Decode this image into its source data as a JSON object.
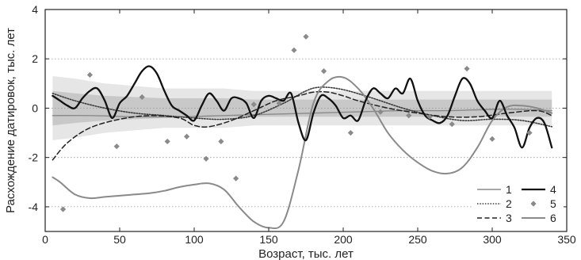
{
  "chart_data": {
    "type": "line",
    "xlabel": "Возраст, тыс. лет",
    "ylabel": "Расхождение датировок, тыс. лет",
    "xlim": [
      0,
      350
    ],
    "ylim": [
      -5,
      4
    ],
    "xticks": [
      0,
      50,
      100,
      150,
      200,
      250,
      300,
      350
    ],
    "yticks": [
      -4,
      -2,
      0,
      2,
      4
    ],
    "grid": "horizontal-dotted",
    "legend_position": "bottom-right",
    "bands": [
      {
        "name": "outer",
        "color": "#e6e6e6",
        "x": [
          5,
          20,
          40,
          60,
          80,
          100,
          120,
          140,
          160,
          180,
          200,
          220,
          240,
          260,
          280,
          300,
          320,
          340
        ],
        "upper": [
          1.3,
          1.2,
          1.0,
          0.9,
          0.8,
          0.8,
          0.8,
          0.7,
          0.7,
          0.7,
          0.7,
          0.7,
          0.7,
          0.7,
          0.7,
          0.7,
          0.7,
          0.7
        ],
        "lower": [
          -1.3,
          -1.2,
          -1.0,
          -0.9,
          -0.8,
          -0.8,
          -0.8,
          -0.7,
          -0.7,
          -0.7,
          -0.7,
          -0.7,
          -0.7,
          -0.7,
          -0.7,
          -0.7,
          -0.7,
          -0.7
        ]
      },
      {
        "name": "inner",
        "color": "#c8c8c8",
        "x": [
          5,
          20,
          40,
          60,
          80,
          100,
          120,
          140,
          160,
          180,
          200,
          220,
          240,
          260,
          280,
          300,
          320,
          340
        ],
        "upper": [
          0.7,
          0.6,
          0.5,
          0.45,
          0.4,
          0.4,
          0.4,
          0.35,
          0.35,
          0.35,
          0.35,
          0.35,
          0.35,
          0.35,
          0.35,
          0.35,
          0.35,
          0.35
        ],
        "lower": [
          -0.7,
          -0.6,
          -0.5,
          -0.45,
          -0.4,
          -0.4,
          -0.4,
          -0.35,
          -0.35,
          -0.35,
          -0.35,
          -0.35,
          -0.35,
          -0.35,
          -0.35,
          -0.35,
          -0.35,
          -0.35
        ]
      }
    ],
    "series": [
      {
        "name": "1",
        "style": "thin-solid",
        "color": "#8a8a8a",
        "x": [
          5,
          30,
          60,
          90,
          120,
          150,
          180,
          210,
          240,
          270,
          300,
          320,
          340
        ],
        "y": [
          -0.3,
          -0.3,
          -0.35,
          -0.35,
          -0.3,
          -0.25,
          -0.2,
          -0.15,
          -0.1,
          -0.1,
          -0.05,
          -0.05,
          -0.1
        ]
      },
      {
        "name": "2",
        "style": "dotted",
        "color": "#3a3a3a",
        "x": [
          5,
          20,
          40,
          60,
          80,
          100,
          120,
          140,
          160,
          175,
          185,
          200,
          220,
          240,
          260,
          280,
          300,
          320,
          340
        ],
        "y": [
          0.6,
          0.3,
          0.0,
          -0.2,
          -0.3,
          -0.4,
          -0.45,
          -0.3,
          0.2,
          0.7,
          0.85,
          0.75,
          0.4,
          0.0,
          -0.3,
          -0.5,
          -0.45,
          -0.5,
          -0.75
        ]
      },
      {
        "name": "3",
        "style": "dashed",
        "color": "#222222",
        "x": [
          5,
          15,
          30,
          50,
          70,
          90,
          100,
          110,
          125,
          140,
          155,
          170,
          180,
          190,
          200,
          210,
          230,
          250,
          270,
          290,
          310,
          330,
          340
        ],
        "y": [
          -2.1,
          -1.4,
          -0.8,
          -0.45,
          -0.3,
          -0.4,
          -0.7,
          -0.75,
          -0.5,
          -0.1,
          0.3,
          0.5,
          0.65,
          0.65,
          0.5,
          0.3,
          0.0,
          -0.2,
          -0.35,
          -0.35,
          -0.2,
          -0.1,
          -0.3
        ]
      },
      {
        "name": "4",
        "style": "thick-solid",
        "color": "#111111",
        "x": [
          5,
          10,
          15,
          20,
          25,
          30,
          35,
          40,
          45,
          50,
          55,
          60,
          65,
          70,
          75,
          80,
          85,
          90,
          95,
          100,
          105,
          110,
          115,
          120,
          125,
          130,
          135,
          140,
          145,
          150,
          155,
          160,
          165,
          170,
          175,
          180,
          185,
          190,
          195,
          200,
          205,
          210,
          215,
          220,
          225,
          230,
          235,
          240,
          245,
          250,
          255,
          260,
          265,
          270,
          275,
          280,
          285,
          290,
          295,
          300,
          305,
          310,
          315,
          320,
          325,
          330,
          335,
          340
        ],
        "y": [
          0.5,
          0.3,
          0.1,
          0.0,
          0.4,
          0.7,
          0.8,
          0.3,
          -0.4,
          0.2,
          0.5,
          1.0,
          1.5,
          1.7,
          1.4,
          0.7,
          0.1,
          -0.1,
          -0.3,
          -0.5,
          0.1,
          0.6,
          0.3,
          -0.1,
          0.4,
          0.4,
          0.2,
          -0.4,
          0.3,
          0.5,
          0.4,
          0.3,
          0.6,
          -0.6,
          -1.3,
          -0.2,
          0.5,
          0.4,
          0.1,
          -0.4,
          -0.3,
          -0.5,
          0.3,
          0.8,
          0.6,
          0.4,
          0.8,
          0.6,
          1.2,
          0.3,
          -0.3,
          -0.5,
          -0.6,
          -0.3,
          0.5,
          1.2,
          1.0,
          0.3,
          -0.1,
          -0.4,
          0.3,
          -0.3,
          -0.8,
          -1.6,
          -0.8,
          -0.4,
          -0.6,
          -1.6
        ]
      },
      {
        "name": "5",
        "style": "diamond-markers",
        "color": "#8a8a8a",
        "x": [
          12,
          30,
          48,
          65,
          82,
          95,
          108,
          118,
          128,
          140,
          157,
          167,
          175,
          187,
          205,
          225,
          244,
          258,
          273,
          283,
          300,
          325
        ],
        "y": [
          -4.1,
          1.35,
          -1.55,
          0.45,
          -1.35,
          -1.15,
          -2.05,
          -1.35,
          -2.85,
          0.15,
          0.2,
          2.35,
          2.9,
          1.5,
          -1.0,
          -0.15,
          -0.3,
          -0.35,
          -0.65,
          1.6,
          -1.25,
          -1.0
        ]
      },
      {
        "name": "6",
        "style": "medium-solid",
        "color": "#8a8a8a",
        "x": [
          5,
          10,
          20,
          30,
          40,
          50,
          60,
          70,
          80,
          90,
          100,
          110,
          120,
          130,
          140,
          150,
          160,
          170,
          180,
          190,
          200,
          210,
          220,
          230,
          240,
          250,
          260,
          270,
          280,
          290,
          300,
          310,
          320,
          330,
          340
        ],
        "y": [
          -2.8,
          -3.0,
          -3.5,
          -3.65,
          -3.6,
          -3.55,
          -3.5,
          -3.45,
          -3.35,
          -3.2,
          -3.1,
          -3.05,
          -3.3,
          -4.0,
          -4.6,
          -4.85,
          -4.6,
          -2.5,
          0.2,
          1.1,
          1.25,
          0.8,
          0.0,
          -1.0,
          -1.7,
          -2.2,
          -2.55,
          -2.65,
          -2.4,
          -1.6,
          -0.5,
          0.05,
          0.1,
          0.0,
          -0.2
        ]
      }
    ]
  }
}
